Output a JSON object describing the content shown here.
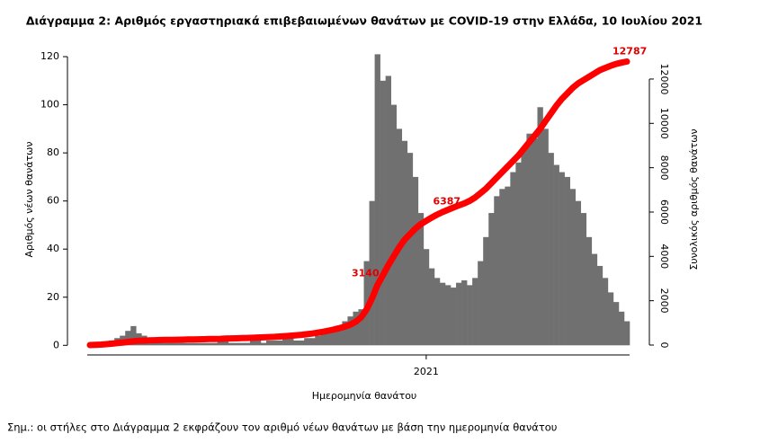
{
  "chart_data": {
    "type": "bar",
    "title": "Διάγραμμα 2: Αριθμός εργαστηριακά επιβεβαιωμένων θανάτων με COVID-19 στην Ελλάδα, 10 Ιουλίου 2021",
    "x_label": "Ημερομηνία θανάτου",
    "y_label": "Αριθμός νέων θανάτων",
    "y2_label": "Συνολικός αριθμός θανάτων",
    "note": "Σημ.: οι στήλες στο Διάγραμμα 2 εκφράζουν τον αριθμό νέων θανάτων με βάση την ημερομηνία θανάτου",
    "categories": [
      null,
      null,
      null,
      null,
      null,
      null,
      null,
      null,
      null,
      null,
      null,
      null,
      null,
      null,
      null,
      null,
      null,
      null,
      null,
      null,
      null,
      null,
      null,
      null,
      null,
      null,
      null,
      null,
      null,
      null,
      null,
      null,
      null,
      null,
      null,
      null,
      null,
      null,
      null,
      null,
      null,
      null,
      null,
      null,
      null,
      null,
      null,
      null,
      null,
      null,
      null,
      null,
      null,
      null,
      null,
      null,
      null,
      null,
      null,
      null,
      null,
      null,
      "2021",
      null,
      null,
      null,
      null,
      null,
      null,
      null,
      null,
      null,
      null,
      null,
      null,
      null,
      null,
      null,
      null,
      null,
      null,
      null,
      null,
      null,
      null,
      null,
      null,
      null,
      null,
      null,
      null,
      null,
      null,
      null,
      null,
      null,
      null,
      null,
      null,
      null
    ],
    "series": [
      {
        "type": "bar",
        "color": "#707070",
        "values": [
          0,
          0,
          1,
          1,
          2,
          3,
          4,
          6,
          8,
          5,
          4,
          3,
          2,
          2,
          1,
          1,
          1,
          1,
          1,
          1,
          1,
          1,
          1,
          1,
          2,
          2,
          1,
          1,
          1,
          1,
          2,
          2,
          1,
          2,
          2,
          2,
          3,
          3,
          2,
          2,
          3,
          3,
          4,
          5,
          6,
          7,
          8,
          10,
          12,
          14,
          15,
          35,
          60,
          121,
          110,
          112,
          100,
          90,
          85,
          80,
          70,
          55,
          40,
          32,
          28,
          26,
          25,
          24,
          26,
          27,
          25,
          28,
          35,
          45,
          55,
          62,
          65,
          66,
          72,
          76,
          82,
          88,
          86,
          99,
          90,
          80,
          75,
          72,
          70,
          65,
          60,
          55,
          45,
          38,
          33,
          28,
          22,
          18,
          14,
          10
        ]
      },
      {
        "type": "line",
        "axis": "y2",
        "color": "#ff0000",
        "values": [
          0,
          10,
          20,
          40,
          60,
          90,
          110,
          140,
          170,
          190,
          200,
          210,
          220,
          225,
          230,
          235,
          240,
          245,
          250,
          255,
          260,
          265,
          270,
          275,
          280,
          290,
          300,
          305,
          310,
          320,
          330,
          340,
          350,
          360,
          370,
          385,
          400,
          420,
          440,
          460,
          490,
          520,
          560,
          600,
          650,
          700,
          760,
          830,
          920,
          1050,
          1250,
          1600,
          2100,
          2700,
          3140,
          3600,
          4000,
          4400,
          4750,
          5000,
          5250,
          5450,
          5600,
          5750,
          5880,
          6000,
          6100,
          6200,
          6300,
          6387,
          6500,
          6650,
          6850,
          7050,
          7300,
          7550,
          7800,
          8050,
          8300,
          8550,
          8850,
          9150,
          9450,
          9750,
          10100,
          10450,
          10800,
          11100,
          11350,
          11600,
          11800,
          11950,
          12100,
          12250,
          12400,
          12500,
          12600,
          12680,
          12740,
          12787
        ],
        "value_labels": [
          null,
          null,
          null,
          null,
          null,
          null,
          null,
          null,
          null,
          null,
          null,
          null,
          null,
          null,
          null,
          null,
          null,
          null,
          null,
          null,
          null,
          null,
          null,
          null,
          null,
          null,
          null,
          null,
          null,
          null,
          null,
          null,
          null,
          null,
          null,
          null,
          null,
          null,
          null,
          null,
          null,
          null,
          null,
          null,
          null,
          null,
          null,
          null,
          null,
          null,
          null,
          null,
          null,
          null,
          "3140",
          null,
          null,
          null,
          null,
          null,
          null,
          null,
          null,
          null,
          null,
          null,
          null,
          null,
          null,
          "6387",
          null,
          null,
          null,
          null,
          null,
          null,
          null,
          null,
          null,
          null,
          null,
          null,
          null,
          null,
          null,
          null,
          null,
          null,
          null,
          null,
          null,
          null,
          null,
          null,
          null,
          null,
          null,
          null,
          null,
          "12787"
        ]
      }
    ],
    "ylim": [
      -4,
      126
    ],
    "yticks": [
      0,
      20,
      40,
      60,
      80,
      100,
      120
    ],
    "y2lim": [
      -446,
      13660
    ],
    "y2ticks": [
      0,
      2000,
      4000,
      6000,
      8000,
      10000,
      12000
    ],
    "grid": false
  }
}
